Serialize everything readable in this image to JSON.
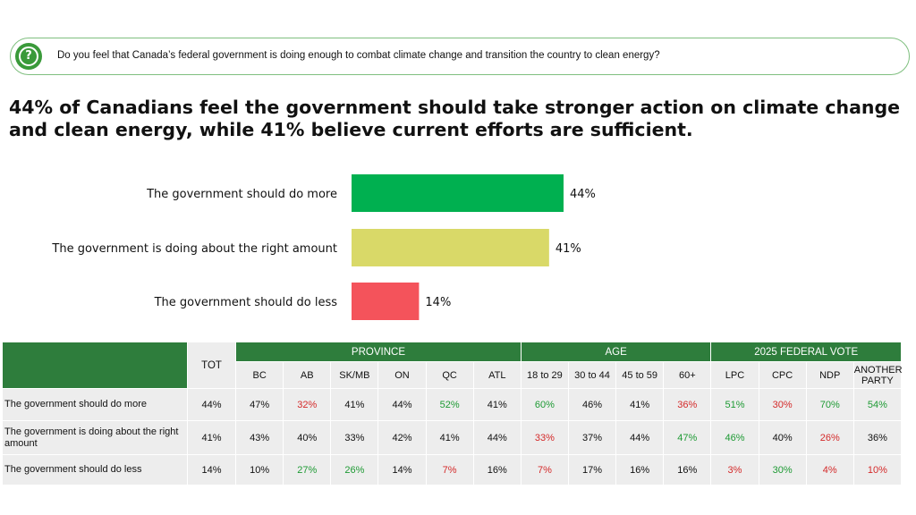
{
  "question": {
    "icon": "question-icon",
    "text": "Do you feel that Canada’s federal government is doing enough to combat climate change and transition the country to clean energy?"
  },
  "headline": "44% of Canadians feel the government should take stronger action on climate change and clean energy, while 41% believe current efforts are sufficient.",
  "colors": {
    "more": "#00b050",
    "right": "#d9d968",
    "less": "#f4535b",
    "table_header": "#2e7d3c",
    "table_cell": "#ededed",
    "positive_text": "#1e9a34",
    "negative_text": "#d42a2a"
  },
  "chart_data": {
    "type": "bar",
    "orientation": "horizontal",
    "categories": [
      "The government should do more",
      "The government is doing about the right amount",
      "The government should do less"
    ],
    "values": [
      44,
      41,
      14
    ],
    "value_labels": [
      "44%",
      "41%",
      "14%"
    ],
    "unit": "%",
    "xlim": [
      0,
      44
    ],
    "title": "",
    "xlabel": "",
    "ylabel": ""
  },
  "table": {
    "tot_label": "TOT",
    "groups": [
      {
        "label": "PROVINCE",
        "columns": [
          "BC",
          "AB",
          "SK/MB",
          "ON",
          "QC",
          "ATL"
        ]
      },
      {
        "label": "AGE",
        "columns": [
          "18 to 29",
          "30 to 44",
          "45 to 59",
          "60+"
        ]
      },
      {
        "label": "2025 FEDERAL VOTE",
        "columns": [
          "LPC",
          "CPC",
          "NDP",
          "ANOTHER PARTY"
        ]
      }
    ],
    "rows": [
      {
        "label": "The government should do more",
        "tot": "44%",
        "values": [
          "47%",
          "32%",
          "41%",
          "44%",
          "52%",
          "41%",
          "60%",
          "46%",
          "41%",
          "36%",
          "51%",
          "30%",
          "70%",
          "54%"
        ],
        "styles": [
          "",
          "red",
          "",
          "",
          "green",
          "",
          "green",
          "",
          "",
          "red",
          "green",
          "red",
          "green",
          "green"
        ]
      },
      {
        "label": "The government is doing about the right amount",
        "tot": "41%",
        "values": [
          "43%",
          "40%",
          "33%",
          "42%",
          "41%",
          "44%",
          "33%",
          "37%",
          "44%",
          "47%",
          "46%",
          "40%",
          "26%",
          "36%"
        ],
        "styles": [
          "",
          "",
          "",
          "",
          "",
          "",
          "red",
          "",
          "",
          "green",
          "green",
          "",
          "red",
          ""
        ]
      },
      {
        "label": "The government should do less",
        "tot": "14%",
        "values": [
          "10%",
          "27%",
          "26%",
          "14%",
          "7%",
          "16%",
          "7%",
          "17%",
          "16%",
          "16%",
          "3%",
          "30%",
          "4%",
          "10%"
        ],
        "styles": [
          "",
          "green",
          "green",
          "",
          "red",
          "",
          "red",
          "",
          "",
          "",
          "red",
          "green",
          "red",
          "red"
        ]
      }
    ]
  }
}
